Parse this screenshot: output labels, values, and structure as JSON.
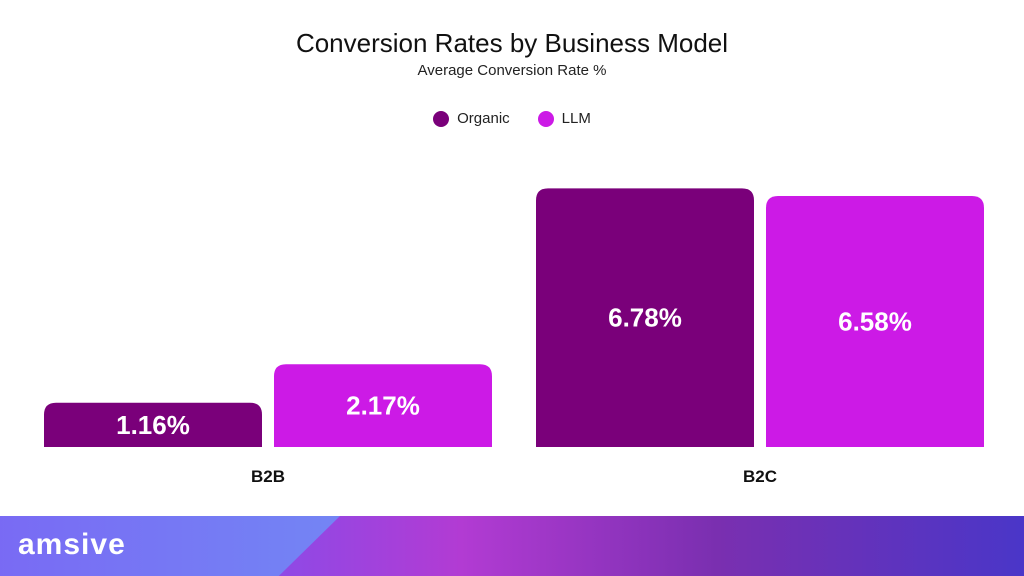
{
  "chart_data": {
    "type": "bar",
    "title": "Conversion Rates by Business Model",
    "subtitle": "Average Conversion Rate %",
    "categories": [
      "B2B",
      "B2C"
    ],
    "series": [
      {
        "name": "Organic",
        "color": "#7a007a",
        "values": [
          1.16,
          6.78
        ],
        "labels": [
          "1.16%",
          "6.78%"
        ]
      },
      {
        "name": "LLM",
        "color": "#cc1ae6",
        "values": [
          2.17,
          6.58
        ],
        "labels": [
          "2.17%",
          "6.58%"
        ]
      }
    ],
    "ylim": [
      0,
      7
    ],
    "grid": false,
    "legend": "top-center"
  },
  "brand": {
    "logo_text": "amsive"
  }
}
